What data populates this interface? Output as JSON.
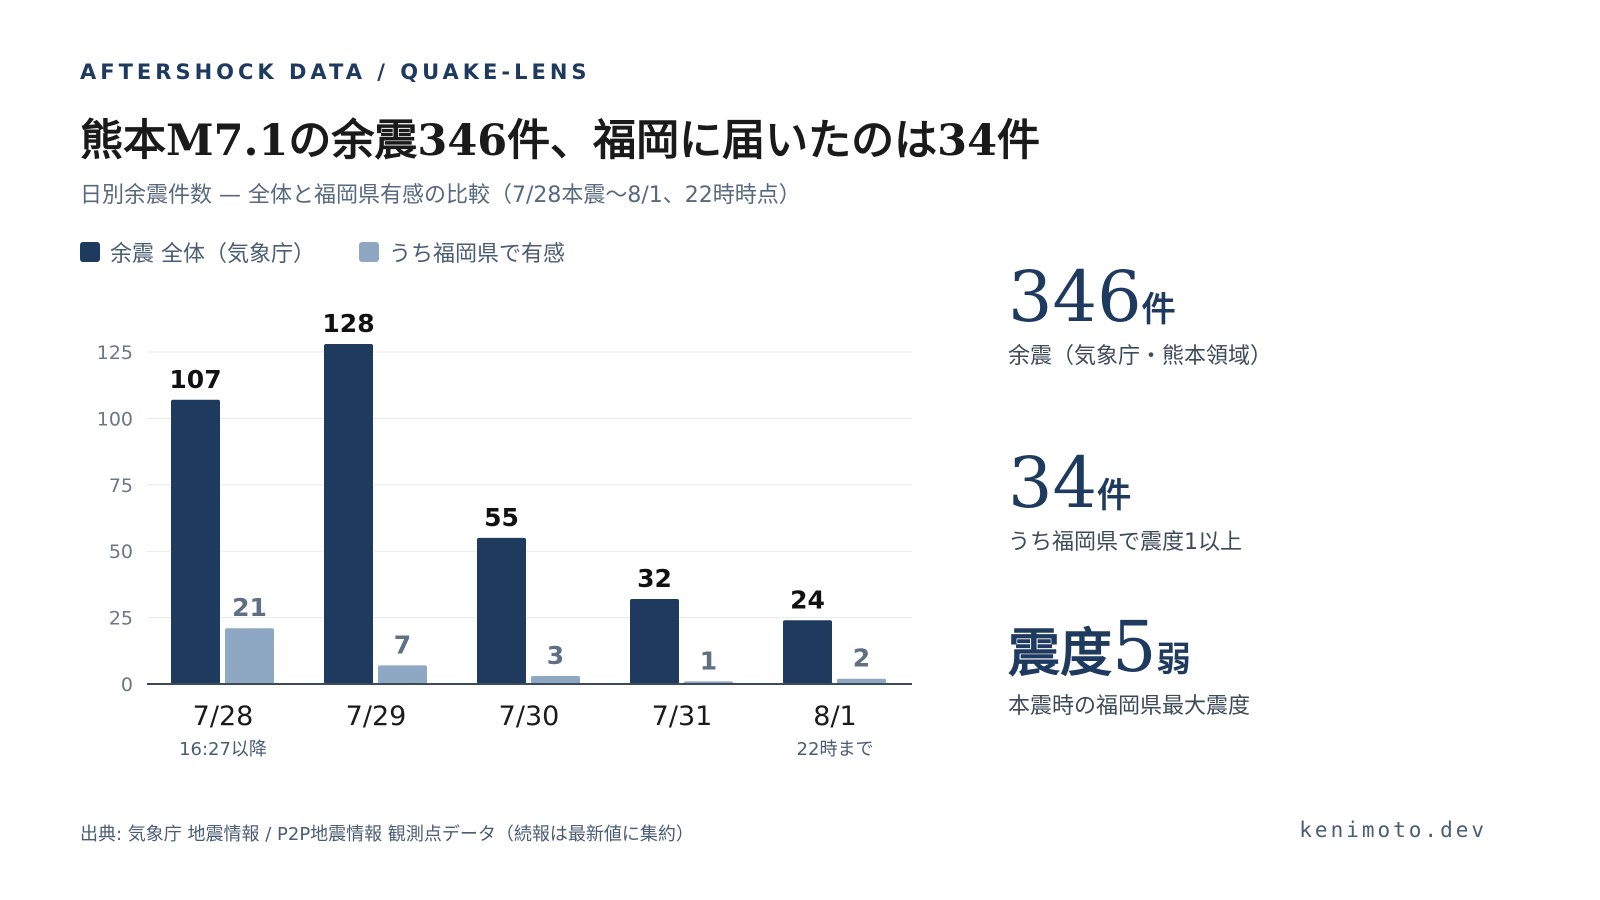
{
  "header": {
    "kicker": "AFTERSHOCK DATA / QUAKE-LENS",
    "title": "熊本M7.1の余震346件、福岡に届いたのは34件",
    "subtitle": "日別余震件数 — 全体と福岡県有感の比較（7/28本震〜8/1、22時時点）"
  },
  "legend": {
    "total": "余震 全体（気象庁）",
    "fukuoka": "うち福岡県で有感"
  },
  "colors": {
    "total": "#1f3a5f",
    "fukuoka": "#8ea7c3",
    "grid": "#e6e9ee",
    "axis": "#3d4a59"
  },
  "chart_data": {
    "type": "bar",
    "categories": [
      "7/28",
      "7/29",
      "7/30",
      "7/31",
      "8/1"
    ],
    "category_notes": [
      "16:27以降",
      "",
      "",
      "",
      "22時まで"
    ],
    "series": [
      {
        "name": "余震 全体（気象庁）",
        "values": [
          107,
          128,
          55,
          32,
          24
        ]
      },
      {
        "name": "うち福岡県で有感",
        "values": [
          21,
          7,
          3,
          1,
          2
        ]
      }
    ],
    "title": "熊本M7.1の余震346件、福岡に届いたのは34件",
    "xlabel": "",
    "ylabel": "",
    "ylim": [
      0,
      125
    ],
    "yticks": [
      0,
      25,
      50,
      75,
      100,
      125
    ],
    "grid": true,
    "legend_position": "top-left"
  },
  "stats": [
    {
      "value": "346",
      "unit": "件",
      "label": "余震（気象庁・熊本領域）"
    },
    {
      "value": "34",
      "unit": "件",
      "label": "うち福岡県で震度1以上"
    },
    {
      "value_prefix": "震度",
      "value": "5",
      "unit": "弱",
      "label": "本震時の福岡県最大震度"
    }
  ],
  "footer": {
    "source": "出典: 気象庁 地震情報 / P2P地震情報 観測点データ（続報は最新値に集約）",
    "site": "kenimoto.dev"
  }
}
